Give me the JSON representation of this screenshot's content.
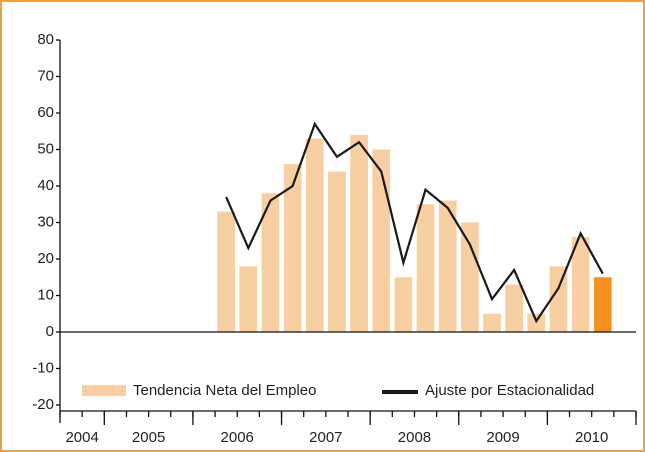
{
  "chart_data": {
    "type": "bar_line",
    "categories": [
      null,
      null,
      null,
      null,
      null,
      null,
      null,
      null,
      null,
      null,
      null,
      null,
      null,
      null,
      null,
      null,
      null,
      null,
      null,
      null,
      null,
      null,
      null,
      null,
      null,
      null
    ],
    "x_groups": [
      {
        "label": "2004",
        "span": 2
      },
      {
        "label": "2005",
        "span": 4
      },
      {
        "label": "2006",
        "span": 4
      },
      {
        "label": "2007",
        "span": 4
      },
      {
        "label": "2008",
        "span": 4
      },
      {
        "label": "2009",
        "span": 4
      },
      {
        "label": "2010",
        "span": 4
      }
    ],
    "series": [
      {
        "name": "Tendencia Neta del Empleo",
        "kind": "bar",
        "color": "#f7cfa3",
        "colors": [
          null,
          null,
          null,
          null,
          null,
          null,
          null,
          "#f7cfa3",
          "#f7cfa3",
          "#f7cfa3",
          "#f7cfa3",
          "#f7cfa3",
          "#f7cfa3",
          "#f7cfa3",
          "#f7cfa3",
          "#f7cfa3",
          "#f7cfa3",
          "#f7cfa3",
          "#f7cfa3",
          "#f7cfa3",
          "#f7cfa3",
          "#f7cfa3",
          "#f7cfa3",
          "#f7cfa3",
          "#f39020",
          null
        ],
        "values": [
          null,
          null,
          null,
          null,
          null,
          null,
          null,
          33,
          18,
          38,
          46,
          53,
          44,
          54,
          50,
          15,
          35,
          36,
          30,
          5,
          13,
          5,
          18,
          26,
          15,
          null
        ]
      },
      {
        "name": "Ajuste por Estacionalidad",
        "kind": "line",
        "color": "#1a1a1a",
        "values": [
          null,
          null,
          null,
          null,
          null,
          null,
          null,
          37,
          23,
          36,
          40,
          57,
          48,
          52,
          44,
          19,
          39,
          34,
          24,
          9,
          17,
          3,
          12,
          27,
          16,
          null
        ]
      }
    ],
    "ylim": [
      -20,
      80
    ],
    "yticks": [
      -20,
      -10,
      0,
      10,
      20,
      30,
      40,
      50,
      60,
      70,
      80
    ],
    "legend": "bottom"
  }
}
